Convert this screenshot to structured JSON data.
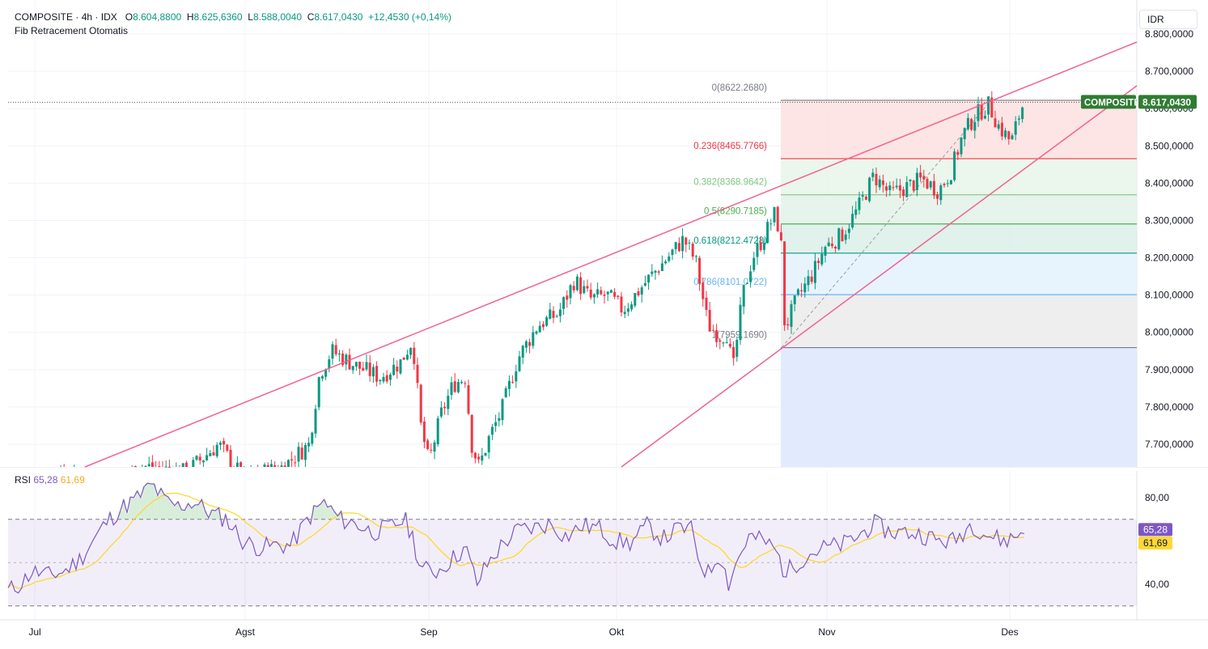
{
  "header": {
    "symbol": "COMPOSITE",
    "interval": "4h",
    "exchange": "IDX",
    "open": "8.604,8800",
    "high": "8.625,6360",
    "low": "8.588,0040",
    "close": "8.617,0430",
    "change": "+12,4530 (+0,14%)",
    "indicator": "Fib Retracement Otomatis"
  },
  "currency_label": "IDR",
  "price_badge": {
    "label": "COMPOSITE",
    "value": "8.617,0430",
    "color": "#2e7d32"
  },
  "rsi": {
    "label": "RSI",
    "value": "65,28",
    "ma_value": "61,69",
    "line_color": "#7e57c2",
    "ma_color": "#fdd835",
    "axis_labels": [
      "80,00",
      "40,00"
    ],
    "upper_band": 70,
    "lower_band": 30,
    "mid_band": 50
  },
  "colors": {
    "up": "#089981",
    "down": "#f23645",
    "channel": "#f06292"
  },
  "chart_data": {
    "type": "candlestick",
    "price_axis_labels": [
      "8.800,0000",
      "8.700,0000",
      "8.600,0000",
      "8.500,0000",
      "8.400,0000",
      "8.300,0000",
      "8.200,0000",
      "8.100,0000",
      "8.000,0000",
      "7.900,0000",
      "7.800,0000",
      "7.700,0000"
    ],
    "ylim": [
      7640,
      8820
    ],
    "x_labels": [
      "Jul",
      "Agst",
      "Sep",
      "Okt",
      "Nov",
      "Des"
    ],
    "last_close": 8617.043,
    "fib_levels": [
      {
        "ratio": "0",
        "price": "8622.2680",
        "value": 8622.268,
        "color": "#787b86",
        "fill": "#fde0e0"
      },
      {
        "ratio": "0.236",
        "price": "8465.7766",
        "value": 8465.7766,
        "color": "#f23645",
        "fill": "#e8f5e9"
      },
      {
        "ratio": "0.382",
        "price": "8368.9642",
        "value": 8368.9642,
        "color": "#81c784",
        "fill": "#e3f2e8"
      },
      {
        "ratio": "0.5",
        "price": "8290.7185",
        "value": 8290.7185,
        "color": "#4caf50",
        "fill": "#dcefe9"
      },
      {
        "ratio": "0.618",
        "price": "8212.4728",
        "value": 8212.4728,
        "color": "#089981",
        "fill": "#e3f2fd"
      },
      {
        "ratio": "0.786",
        "price": "8101.0722",
        "value": 8101.0722,
        "color": "#64b5f6",
        "fill": "#ebebeb"
      },
      {
        "ratio": "1",
        "price": "7959.1690",
        "value": 7959.169,
        "color": "#787b86",
        "fill": "#dde7fe"
      }
    ]
  }
}
